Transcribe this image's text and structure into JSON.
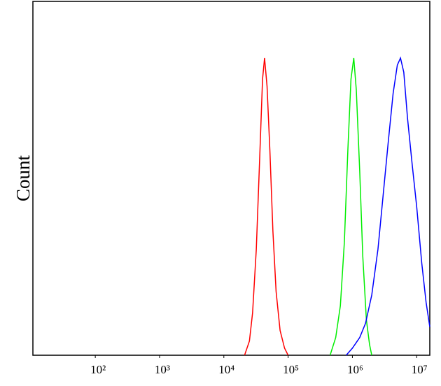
{
  "chart_data": {
    "type": "line",
    "ylabel": "Count",
    "xscale": "log",
    "xlim": [
      10.7,
      16000000
    ],
    "ylim": [
      0,
      100
    ],
    "xticks": [
      {
        "value": 100,
        "label": "10²"
      },
      {
        "value": 1000,
        "label": "10³"
      },
      {
        "value": 10000,
        "label": "10⁴"
      },
      {
        "value": 100000,
        "label": "10⁵"
      },
      {
        "value": 1000000,
        "label": "10⁶"
      },
      {
        "value": 10000000,
        "label": "10⁷"
      }
    ],
    "series": [
      {
        "color": "#ff0000",
        "x": [
          21000,
          25000,
          28000,
          32000,
          36000,
          40000,
          43000,
          47000,
          52000,
          58000,
          65000,
          75000,
          88000,
          100000
        ],
        "values": [
          0,
          4,
          12,
          30,
          55,
          78,
          84,
          76,
          58,
          35,
          18,
          7,
          2,
          0
        ]
      },
      {
        "color": "#00ee00",
        "x": [
          450000,
          550000,
          650000,
          750000,
          850000,
          950000,
          1050000,
          1150000,
          1300000,
          1450000,
          1650000,
          1850000,
          2000000
        ],
        "values": [
          0,
          5,
          14,
          32,
          58,
          78,
          84,
          75,
          52,
          28,
          10,
          3,
          0
        ]
      },
      {
        "color": "#0000ff",
        "x": [
          800000,
          1000000,
          1300000,
          1600000,
          2000000,
          2500000,
          3000000,
          3600000,
          4300000,
          5000000,
          5600000,
          6300000,
          7200000,
          8500000,
          10000000,
          12000000,
          14000000,
          16000000
        ],
        "values": [
          0,
          2,
          5,
          9,
          17,
          30,
          45,
          60,
          74,
          82,
          84,
          80,
          67,
          54,
          42,
          26,
          15,
          8
        ]
      }
    ]
  }
}
